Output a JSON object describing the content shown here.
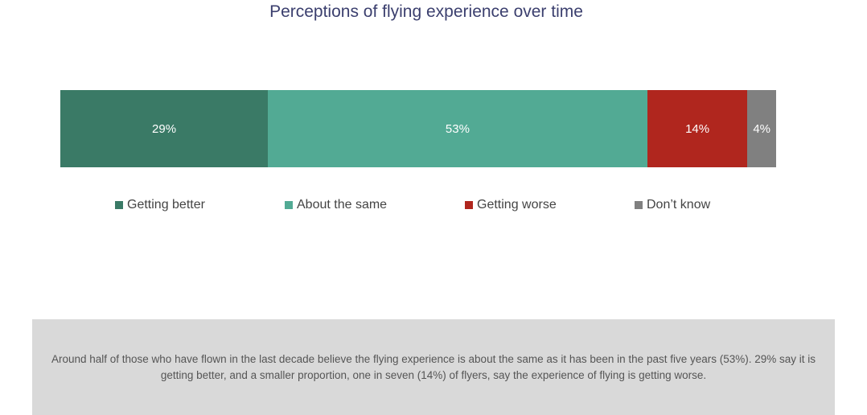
{
  "title": "Perceptions of flying experience over time",
  "chart_data": {
    "type": "bar",
    "orientation": "horizontal-stacked-100",
    "categories": [
      "Getting better",
      "About the same",
      "Getting worse",
      "Don’t know"
    ],
    "values": [
      29,
      53,
      14,
      4
    ],
    "labels": [
      "29%",
      "53%",
      "14%",
      "4%"
    ],
    "unit": "%",
    "colors": [
      "#3a7a66",
      "#52aa94",
      "#b0261e",
      "#808080"
    ],
    "title": "Perceptions of flying experience over time",
    "legend_position": "bottom",
    "grid": false
  },
  "note": "Around half of those who have flown in the last decade believe the flying experience is about the same as it has been in the past five years (53%). 29% say it is getting better, and a smaller proportion, one in seven (14%) of flyers, say the experience of flying is getting worse."
}
